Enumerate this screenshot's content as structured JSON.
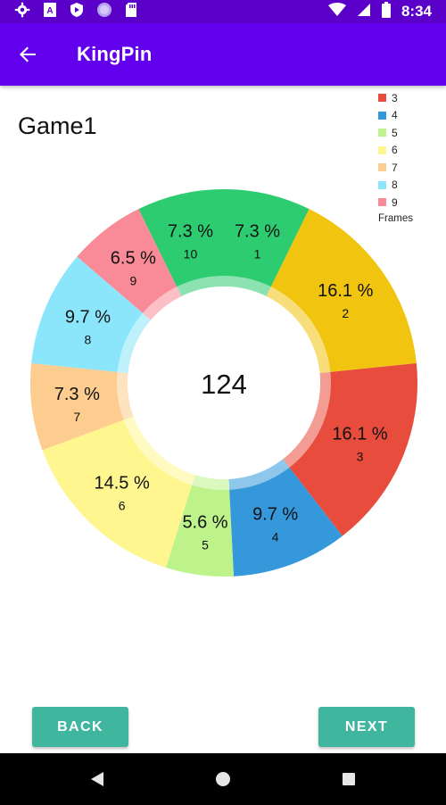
{
  "status_bar": {
    "time": "8:34",
    "icons": [
      "gear-icon",
      "a-box-icon",
      "shield-icon",
      "circle-icon",
      "sd-card-icon",
      "wifi-icon",
      "signal-icon",
      "battery-icon"
    ]
  },
  "app_bar": {
    "title": "KingPin",
    "back_icon": "arrow-left-icon"
  },
  "game": {
    "title": "Game1"
  },
  "legend": {
    "description": "Frames",
    "items": [
      {
        "label": "3",
        "color": "#e74c3c"
      },
      {
        "label": "4",
        "color": "#3498db"
      },
      {
        "label": "5",
        "color": "#bef28b"
      },
      {
        "label": "6",
        "color": "#fff68f"
      },
      {
        "label": "7",
        "color": "#fdcc8f"
      },
      {
        "label": "8",
        "color": "#8be6fc"
      },
      {
        "label": "9",
        "color": "#f98b98"
      }
    ]
  },
  "chart_data": {
    "type": "pie",
    "center_text": "124",
    "slices": [
      {
        "frame": "1",
        "percent_label": "7.3 %",
        "value": 9,
        "color": "#2ecc71"
      },
      {
        "frame": "2",
        "percent_label": "16.1 %",
        "value": 20,
        "color": "#f1c40f"
      },
      {
        "frame": "3",
        "percent_label": "16.1 %",
        "value": 20,
        "color": "#e74c3c"
      },
      {
        "frame": "4",
        "percent_label": "9.7 %",
        "value": 12,
        "color": "#3498db"
      },
      {
        "frame": "5",
        "percent_label": "5.6 %",
        "value": 7,
        "color": "#bef28b"
      },
      {
        "frame": "6",
        "percent_label": "14.5 %",
        "value": 18,
        "color": "#fff68f"
      },
      {
        "frame": "7",
        "percent_label": "7.3 %",
        "value": 9,
        "color": "#fdcc8f"
      },
      {
        "frame": "8",
        "percent_label": "9.7 %",
        "value": 12,
        "color": "#8be6fc"
      },
      {
        "frame": "9",
        "percent_label": "6.5 %",
        "value": 8,
        "color": "#f98b98"
      },
      {
        "frame": "10",
        "percent_label": "7.3 %",
        "value": 9,
        "color": "#2ecc71"
      }
    ]
  },
  "buttons": {
    "back_label": "BACK",
    "next_label": "NEXT"
  },
  "nav_bar": {
    "icons": [
      "nav-back-icon",
      "nav-home-icon",
      "nav-recents-icon"
    ]
  }
}
